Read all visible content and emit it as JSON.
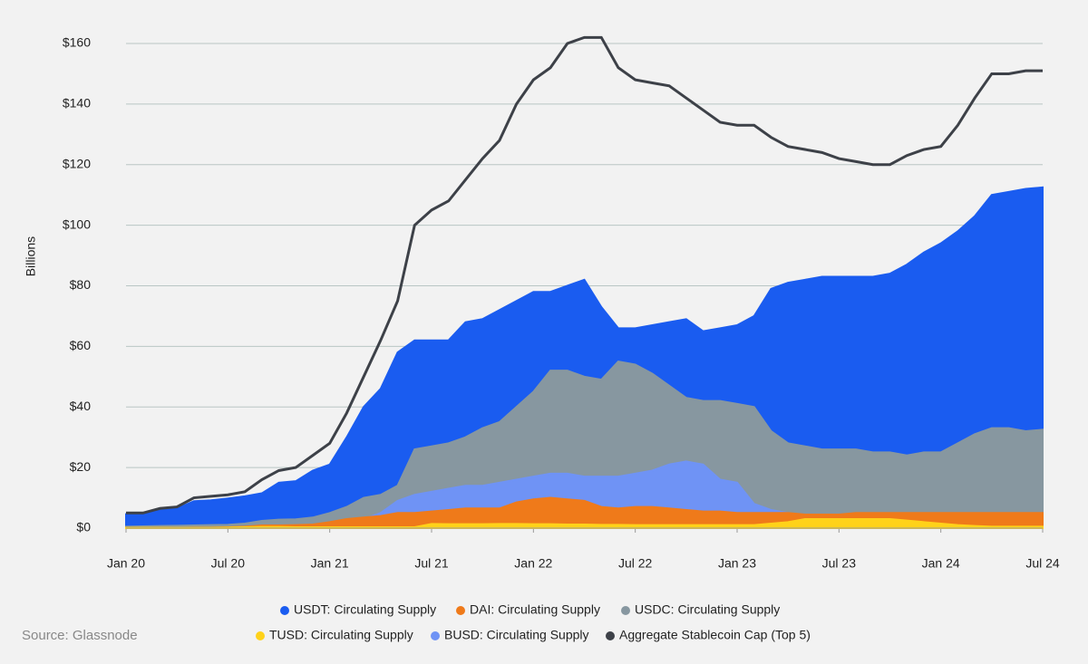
{
  "chart_data": {
    "type": "area",
    "y_label": "Billions",
    "source": "Source: Glassnode",
    "grid": true,
    "legend_position": "bottom",
    "x": [
      "2020-01",
      "2020-02",
      "2020-03",
      "2020-04",
      "2020-05",
      "2020-06",
      "2020-07",
      "2020-08",
      "2020-09",
      "2020-10",
      "2020-11",
      "2020-12",
      "2021-01",
      "2021-02",
      "2021-03",
      "2021-04",
      "2021-05",
      "2021-06",
      "2021-07",
      "2021-08",
      "2021-09",
      "2021-10",
      "2021-11",
      "2021-12",
      "2022-01",
      "2022-02",
      "2022-03",
      "2022-04",
      "2022-05",
      "2022-06",
      "2022-07",
      "2022-08",
      "2022-09",
      "2022-10",
      "2022-11",
      "2022-12",
      "2023-01",
      "2023-02",
      "2023-03",
      "2023-04",
      "2023-05",
      "2023-06",
      "2023-07",
      "2023-08",
      "2023-09",
      "2023-10",
      "2023-11",
      "2023-12",
      "2024-01",
      "2024-02",
      "2024-03",
      "2024-04",
      "2024-05",
      "2024-06",
      "2024-07"
    ],
    "xlim": [
      "2020-01",
      "2024-07"
    ],
    "xticks": [
      {
        "value": "2020-01",
        "label": "Jan 20"
      },
      {
        "value": "2020-07",
        "label": "Jul 20"
      },
      {
        "value": "2021-01",
        "label": "Jan 21"
      },
      {
        "value": "2021-07",
        "label": "Jul 21"
      },
      {
        "value": "2022-01",
        "label": "Jan 22"
      },
      {
        "value": "2022-07",
        "label": "Jul 22"
      },
      {
        "value": "2023-01",
        "label": "Jan 23"
      },
      {
        "value": "2023-07",
        "label": "Jul 23"
      },
      {
        "value": "2024-01",
        "label": "Jan 24"
      },
      {
        "value": "2024-07",
        "label": "Jul 24"
      }
    ],
    "ylim": [
      0,
      160
    ],
    "yticks": [
      {
        "value": 0,
        "label": "$0"
      },
      {
        "value": 20,
        "label": "$20"
      },
      {
        "value": 40,
        "label": "$40"
      },
      {
        "value": 60,
        "label": "$60"
      },
      {
        "value": 80,
        "label": "$80"
      },
      {
        "value": 100,
        "label": "$100"
      },
      {
        "value": 120,
        "label": "$120"
      },
      {
        "value": 140,
        "label": "$140"
      },
      {
        "value": 160,
        "label": "$160"
      }
    ],
    "series": [
      {
        "name": "USDT: Circulating Supply",
        "color": "#1a5cf0",
        "kind": "area",
        "values": [
          4.6,
          4.6,
          6.4,
          6.4,
          8.9,
          9.2,
          9.8,
          10.5,
          11.5,
          15,
          15.5,
          19,
          21,
          30,
          40,
          46,
          58,
          62,
          62,
          62,
          68,
          69,
          72,
          75,
          78,
          78,
          80,
          82,
          73,
          66,
          66,
          67,
          68,
          69,
          65,
          66,
          67,
          70,
          79,
          81,
          82,
          83,
          83,
          83,
          83,
          84,
          87,
          91,
          94,
          98,
          103,
          110,
          111,
          112,
          112.5
        ]
      },
      {
        "name": "DAI: Circulating Supply",
        "color": "#ef7a1a",
        "kind": "area",
        "values": [
          0.1,
          0.1,
          0.1,
          0.1,
          0.2,
          0.2,
          0.3,
          0.5,
          0.9,
          0.9,
          1,
          1.2,
          2,
          3,
          3.5,
          4,
          5,
          5,
          5.5,
          6,
          6.5,
          6.5,
          6.5,
          8.5,
          9.5,
          10,
          9.5,
          9,
          7,
          6.5,
          7,
          7,
          6.5,
          6,
          5.5,
          5.5,
          5,
          5,
          5,
          5,
          4.5,
          4.5,
          4.5,
          5,
          5,
          5,
          5,
          5,
          5,
          5,
          5,
          5,
          5,
          5,
          5
        ]
      },
      {
        "name": "USDC: Circulating Supply",
        "color": "#8797a0",
        "kind": "area",
        "values": [
          0.5,
          0.6,
          0.7,
          0.8,
          0.9,
          1,
          1.1,
          1.5,
          2.4,
          2.8,
          2.9,
          3.5,
          5,
          7,
          10,
          11,
          14,
          26,
          27,
          28,
          30,
          33,
          35,
          40,
          45,
          52,
          52,
          50,
          49,
          55,
          54,
          51,
          47,
          43,
          42,
          42,
          41,
          40,
          32,
          28,
          27,
          26,
          26,
          26,
          25,
          25,
          24,
          25,
          25,
          28,
          31,
          33,
          33,
          32,
          32.5
        ]
      },
      {
        "name": "TUSD: Circulating Supply",
        "color": "#ffd21a",
        "kind": "area",
        "values": [
          0.1,
          0.1,
          0.1,
          0.1,
          0.1,
          0.1,
          0.2,
          0.3,
          0.4,
          0.4,
          0.3,
          0.3,
          0.3,
          0.3,
          0.3,
          0.3,
          0.3,
          0.3,
          1.4,
          1.3,
          1.3,
          1.3,
          1.4,
          1.4,
          1.3,
          1.3,
          1.2,
          1.2,
          1.1,
          1.1,
          1,
          1,
          1,
          1,
          1,
          1,
          1,
          1,
          1.5,
          2,
          3,
          3,
          3,
          3,
          3,
          3,
          2.5,
          2,
          1.5,
          1,
          0.7,
          0.5,
          0.5,
          0.5,
          0.5
        ]
      },
      {
        "name": "BUSD: Circulating Supply",
        "color": "#6f93f5",
        "kind": "area",
        "values": [
          0.1,
          0.1,
          0.1,
          0.2,
          0.2,
          0.2,
          0.2,
          0.2,
          0.3,
          0.3,
          0.4,
          0.5,
          0.8,
          2,
          3,
          5,
          9,
          11,
          12,
          13,
          14,
          14,
          15,
          16,
          17,
          18,
          18,
          17,
          17,
          17,
          18,
          19,
          21,
          22,
          21,
          16,
          15,
          8,
          6,
          5,
          4,
          3.5,
          3,
          2.5,
          2,
          1.5,
          1.2,
          1,
          0.5,
          0.3,
          0.2,
          0.1,
          0.1,
          0.1,
          0.1
        ]
      },
      {
        "name": "Aggregate Stablecoin Cap (Top 5)",
        "color": "#3d4148",
        "kind": "line",
        "values": [
          5,
          5,
          6.5,
          7,
          10,
          10.5,
          11,
          12,
          16,
          19,
          20,
          24,
          28,
          38,
          50,
          62,
          75,
          100,
          105,
          108,
          115,
          122,
          128,
          140,
          148,
          152,
          160,
          162,
          162,
          152,
          148,
          147,
          146,
          142,
          138,
          134,
          133,
          133,
          129,
          126,
          125,
          124,
          122,
          121,
          120,
          120,
          123,
          125,
          126,
          133,
          142,
          150,
          150,
          151,
          151
        ]
      }
    ]
  }
}
